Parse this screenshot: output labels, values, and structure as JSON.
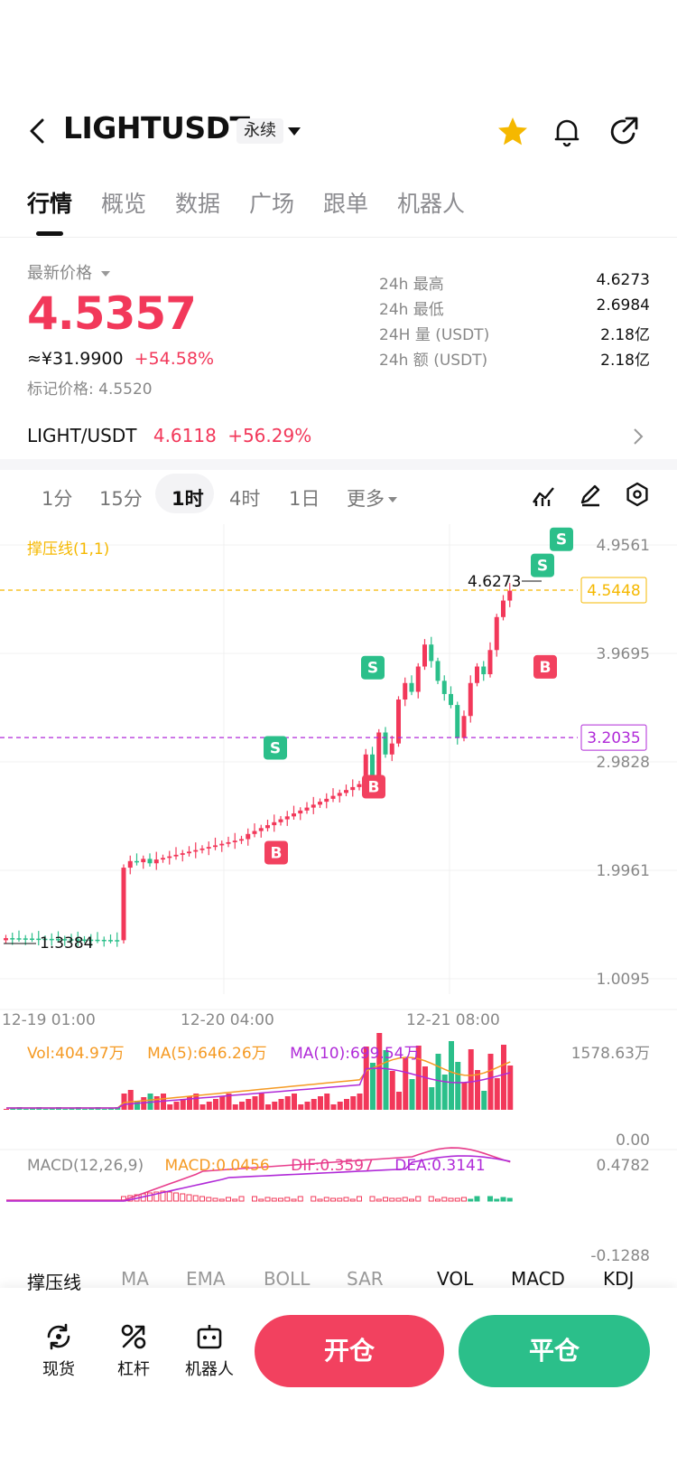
{
  "header": {
    "symbol": "LIGHTUSDT",
    "badge": "永续",
    "icons": [
      "back-icon",
      "star-icon",
      "bell-icon",
      "share-icon"
    ]
  },
  "tabs": [
    "行情",
    "概览",
    "数据",
    "广场",
    "跟单",
    "机器人"
  ],
  "price": {
    "latest_label": "最新价格",
    "last": "4.5357",
    "cny": "≈¥31.9900",
    "change": "+54.58%",
    "mark": "标记价格: 4.5520"
  },
  "stats": [
    {
      "label": "24h  最高",
      "value": "4.6273"
    },
    {
      "label": "24h  最低",
      "value": "2.6984"
    },
    {
      "label": "24H  量 (USDT)",
      "value": "2.18亿"
    },
    {
      "label": "24h  额 (USDT)",
      "value": "2.18亿"
    }
  ],
  "spot_pair": {
    "pair": "LIGHT/USDT",
    "price": "4.6118",
    "change": "+56.29%"
  },
  "timeframes": [
    "1分",
    "15分",
    "1时",
    "4时",
    "1日",
    "更多"
  ],
  "chart": {
    "indicator_label": "撑压线(1,1)",
    "y_ticks": [
      "4.9561",
      "3.9695",
      "2.9828",
      "1.9961",
      "1.0095"
    ],
    "x_ticks": [
      "12-19 01:00",
      "12-20 04:00",
      "12-21 08:00"
    ],
    "high_label": "4.6273",
    "low_label": "1.3384",
    "current_tag": "4.5448",
    "support_tag": "3.2035",
    "signals": [
      "S",
      "S",
      "S",
      "S",
      "B",
      "B",
      "B",
      "B"
    ]
  },
  "volume": {
    "vol": "Vol:404.97万",
    "ma5": "MA(5):646.26万",
    "ma10": "MA(10):699.54万",
    "max": "1578.63万",
    "min": "0.00"
  },
  "macd": {
    "title": "MACD(12,26,9)",
    "macd": "MACD:0.0456",
    "dif": "DIF:0.3597",
    "dea": "DEA:0.3141",
    "max": "0.4782",
    "min": "-0.1288"
  },
  "indicator_tabs": [
    "撑压线",
    "MA",
    "EMA",
    "BOLL",
    "SAR",
    "VOL",
    "MACD",
    "KDJ"
  ],
  "bottom_nav": [
    {
      "label": "现货",
      "icon": "spot-icon"
    },
    {
      "label": "杠杆",
      "icon": "leverage-icon"
    },
    {
      "label": "机器人",
      "icon": "robot-icon"
    }
  ],
  "actions": {
    "open": "开仓",
    "close": "平仓"
  },
  "colors": {
    "up": "#f2385a",
    "down": "#2bbf8a",
    "accent": "#f5b800",
    "purple": "#b02ad8"
  }
}
